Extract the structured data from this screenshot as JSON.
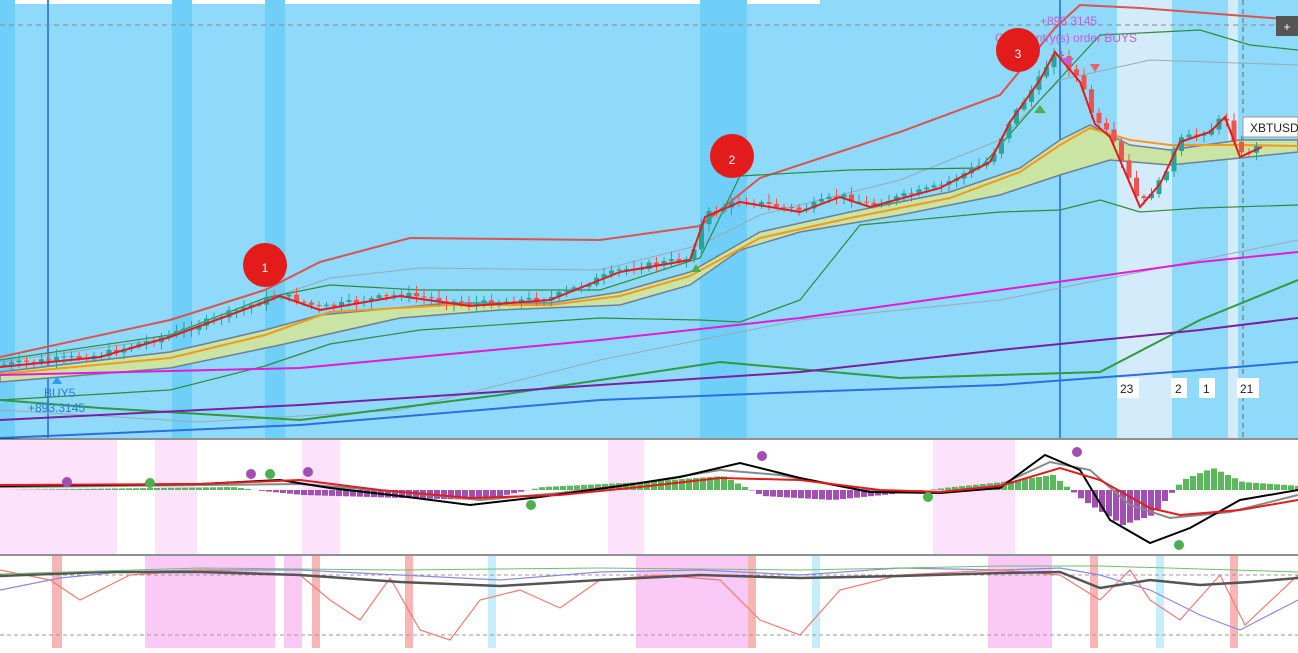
{
  "markers": [
    "1",
    "2",
    "3"
  ],
  "annotations": {
    "buy_label": "BUY5",
    "buy_profit": "+893.3145",
    "close_profit": "+893.3145",
    "close_label": "Close entry(s) order BUYS"
  },
  "symbol": "XBTUSD",
  "bar_labels": [
    "23",
    "2",
    "1",
    "21"
  ],
  "button": "+"
}
